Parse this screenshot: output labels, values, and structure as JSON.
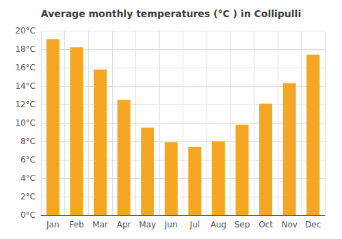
{
  "chart_data": {
    "type": "bar",
    "title": "Average monthly temperatures (°C ) in Collipulli",
    "categories": [
      "Jan",
      "Feb",
      "Mar",
      "Apr",
      "May",
      "Jun",
      "Jul",
      "Aug",
      "Sep",
      "Oct",
      "Nov",
      "Dec"
    ],
    "values": [
      19.1,
      18.2,
      15.8,
      12.5,
      9.5,
      7.9,
      7.4,
      8.0,
      9.8,
      12.1,
      14.3,
      17.4
    ],
    "color": "#F5A623",
    "ylim": [
      0,
      20
    ],
    "yticks": [
      {
        "value": 0,
        "label": "0°C"
      },
      {
        "value": 2,
        "label": "2°C"
      },
      {
        "value": 4,
        "label": "4°C"
      },
      {
        "value": 6,
        "label": "6°C"
      },
      {
        "value": 8,
        "label": "8°C"
      },
      {
        "value": 10,
        "label": "10°C"
      },
      {
        "value": 12,
        "label": "12°C"
      },
      {
        "value": 14,
        "label": "14°C"
      },
      {
        "value": 16,
        "label": "16°C"
      },
      {
        "value": 18,
        "label": "18°C"
      },
      {
        "value": 20,
        "label": "20°C"
      }
    ],
    "grid": true
  }
}
